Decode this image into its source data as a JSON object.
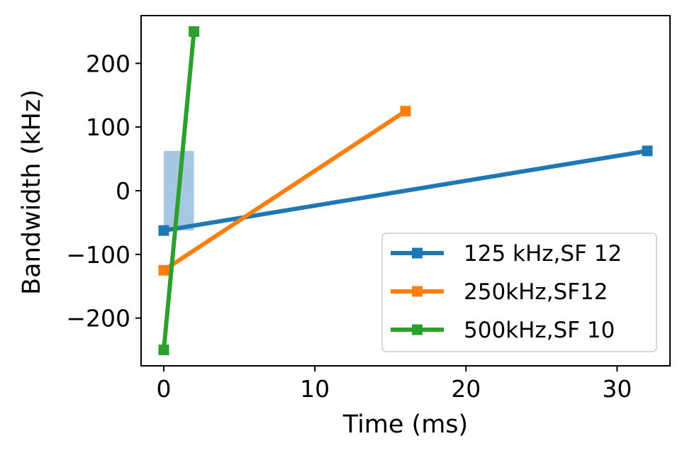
{
  "chart_data": {
    "type": "line",
    "xlabel": "Time (ms)",
    "ylabel": "Bandwidth (kHz)",
    "xlim": [
      -1.5,
      33.5
    ],
    "ylim": [
      -275,
      275
    ],
    "xticks": [
      0,
      10,
      20,
      30
    ],
    "xtick_labels": [
      "0",
      "10",
      "20",
      "30"
    ],
    "yticks": [
      -200,
      -100,
      0,
      100,
      200
    ],
    "ytick_labels": [
      "−200",
      "−100",
      "0",
      "100",
      "200"
    ],
    "grid": false,
    "legend_position": "lower-right",
    "series": [
      {
        "name": "125 kHz,SF 12",
        "color": "#1f77b4",
        "marker": "square",
        "x": [
          0,
          32
        ],
        "y": [
          -62.5,
          62.5
        ]
      },
      {
        "name": "250kHz,SF12",
        "color": "#ff7f0e",
        "marker": "square",
        "x": [
          0,
          16
        ],
        "y": [
          -125,
          125
        ]
      },
      {
        "name": "500kHz,SF 10",
        "color": "#2ca02c",
        "marker": "square",
        "x": [
          0,
          2
        ],
        "y": [
          -250,
          250
        ]
      }
    ],
    "shaded_region": {
      "x": [
        0,
        2
      ],
      "y": [
        -62.5,
        62.5
      ],
      "color": "#a6c8e3"
    }
  }
}
